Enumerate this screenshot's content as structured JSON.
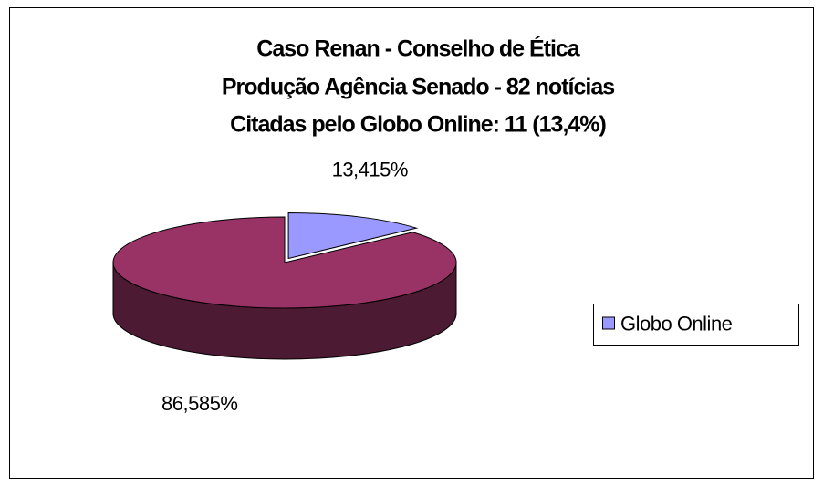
{
  "chart_data": {
    "type": "pie",
    "title_lines": [
      "Caso Renan - Conselho de Ética",
      "Produção Agência Senado - 82 notícias",
      "Citadas pelo Globo Online: 11 (13,4%)"
    ],
    "categories": [
      "Globo Online",
      null
    ],
    "values": [
      13.415,
      86.585
    ],
    "value_labels": [
      "13,415%",
      "86,585%"
    ],
    "colors": [
      "#9999ff",
      "#993366"
    ],
    "legend": "right"
  }
}
